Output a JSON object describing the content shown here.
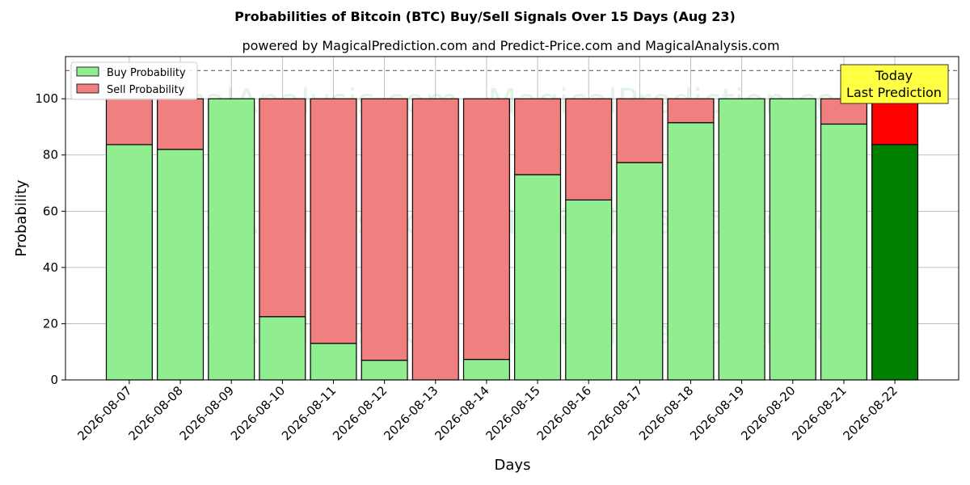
{
  "chart_data": {
    "type": "bar",
    "stacked": true,
    "title": "Probabilities of Bitcoin (BTC) Buy/Sell Signals Over 15 Days (Aug 23)",
    "subtitle": "powered by MagicalPrediction.com and Predict-Price.com and MagicalAnalysis.com",
    "xlabel": "Days",
    "ylabel": "Probability",
    "ylim": [
      0,
      115
    ],
    "yticks": [
      0,
      20,
      40,
      60,
      80,
      100
    ],
    "reference_line": 110,
    "grid": true,
    "legend_position": "top-left",
    "categories": [
      "2026-08-07",
      "2026-08-08",
      "2026-08-09",
      "2026-08-10",
      "2026-08-11",
      "2026-08-12",
      "2026-08-13",
      "2026-08-14",
      "2026-08-15",
      "2026-08-16",
      "2026-08-17",
      "2026-08-18",
      "2026-08-19",
      "2026-08-20",
      "2026-08-21",
      "2026-08-22"
    ],
    "series": [
      {
        "name": "Buy Probability",
        "color": "#90ee90",
        "highlight_color": "#008000",
        "values": [
          83.7,
          82.0,
          100,
          22.5,
          13.0,
          7.0,
          0,
          7.3,
          73.0,
          64.0,
          77.3,
          91.5,
          100,
          100,
          91.0,
          83.7
        ]
      },
      {
        "name": "Sell Probability",
        "color": "#f08080",
        "highlight_color": "#ff0000",
        "values": [
          16.3,
          18.0,
          0,
          77.5,
          87.0,
          93.0,
          100,
          92.7,
          27.0,
          36.0,
          22.7,
          8.5,
          0,
          0,
          9.0,
          16.3
        ]
      }
    ],
    "highlight_index": 15,
    "annotation": {
      "lines": [
        "Today",
        "Last Prediction"
      ],
      "background": "#ffff44"
    },
    "watermarks": [
      "MagicalAnalysis.com",
      "MagicalPrediction.com"
    ]
  }
}
